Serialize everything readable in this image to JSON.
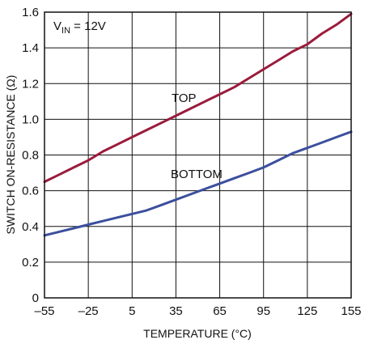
{
  "chart_data": {
    "type": "line",
    "xlabel": "TEMPERATURE (°C)",
    "ylabel": "SWITCH ON-RESISTANCE (Ω)",
    "xlim": [
      -55,
      155
    ],
    "ylim": [
      0,
      1.6
    ],
    "x_ticks": [
      -55,
      -25,
      5,
      35,
      65,
      95,
      125,
      155
    ],
    "x_tick_labels": [
      "–55",
      "–25",
      "5",
      "35",
      "65",
      "95",
      "125",
      "155"
    ],
    "y_ticks": [
      0,
      0.2,
      0.4,
      0.6,
      0.8,
      1.0,
      1.2,
      1.4,
      1.6
    ],
    "y_tick_labels": [
      "0",
      "0.2",
      "0.4",
      "0.6",
      "0.8",
      "1.0",
      "1.2",
      "1.4",
      "1.6"
    ],
    "grid": true,
    "annotation": {
      "main": "V",
      "sub": "IN",
      "rest": " = 12V"
    },
    "series": [
      {
        "name": "TOP",
        "color": "#9b1b3c",
        "x": [
          -55,
          -45,
          -35,
          -25,
          -15,
          -5,
          5,
          15,
          25,
          35,
          45,
          55,
          65,
          75,
          85,
          95,
          105,
          115,
          125,
          135,
          145,
          155
        ],
        "y": [
          0.65,
          0.69,
          0.73,
          0.77,
          0.82,
          0.86,
          0.9,
          0.94,
          0.98,
          1.02,
          1.06,
          1.1,
          1.14,
          1.18,
          1.23,
          1.28,
          1.33,
          1.38,
          1.42,
          1.48,
          1.53,
          1.59
        ]
      },
      {
        "name": "BOTTOM",
        "color": "#3c4f9e",
        "x": [
          -55,
          -45,
          -35,
          -25,
          -15,
          -5,
          5,
          15,
          25,
          35,
          45,
          55,
          65,
          75,
          85,
          95,
          105,
          115,
          125,
          135,
          145,
          155
        ],
        "y": [
          0.35,
          0.37,
          0.39,
          0.41,
          0.43,
          0.45,
          0.47,
          0.49,
          0.52,
          0.55,
          0.58,
          0.61,
          0.64,
          0.67,
          0.7,
          0.73,
          0.77,
          0.81,
          0.84,
          0.87,
          0.9,
          0.93
        ]
      }
    ]
  }
}
